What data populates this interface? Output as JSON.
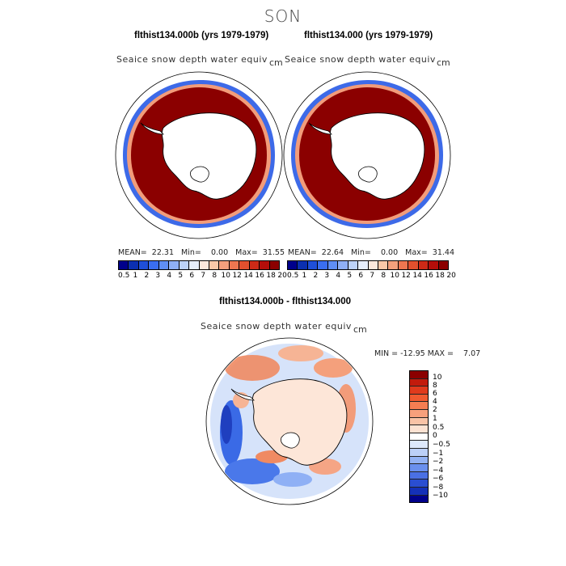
{
  "season": "SON",
  "panels": [
    {
      "title": "flthist134.000b (yrs 1979-1979)",
      "variable": "Seaice snow depth water equiv",
      "unit": "cm",
      "stats": "MEAN=  22.31   Min=    0.00   Max=  31.55"
    },
    {
      "title": "flthist134.000 (yrs 1979-1979)",
      "variable": "Seaice snow depth water equiv",
      "unit": "cm",
      "stats": "MEAN=  22.64   Min=    0.00   Max=  31.44"
    }
  ],
  "colorbar": {
    "labels": [
      "0.5",
      "1",
      "2",
      "3",
      "4",
      "5",
      "6",
      "7",
      "8",
      "10",
      "12",
      "14",
      "16",
      "18",
      "20"
    ],
    "colors": [
      "#00008b",
      "#0b2fb0",
      "#1f4fd8",
      "#3a6ef0",
      "#5f8ef5",
      "#8fb0f5",
      "#bcd2f7",
      "#e6eefb",
      "#fce8dc",
      "#f9c8a8",
      "#f4a07c",
      "#ee7650",
      "#e1502e",
      "#cd2a17",
      "#b30e0a",
      "#8b0000"
    ]
  },
  "diff": {
    "title": "flthist134.000b - flthist134.000",
    "variable": "Seaice snow depth water equiv",
    "unit": "cm",
    "minmax": "MIN = -12.95 MAX =    7.07",
    "colorbar_labels": [
      "10",
      "8",
      "6",
      "4",
      "2",
      "1",
      "0.5",
      "0",
      "−0.5",
      "−1",
      "−2",
      "−4",
      "−6",
      "−8",
      "−10"
    ],
    "colorbar_colors": [
      "#8b0000",
      "#c21b0c",
      "#e03a1c",
      "#f05a30",
      "#f57d52",
      "#f7a07c",
      "#f9c3a6",
      "#fce2d2",
      "#ffffff",
      "#dde8fb",
      "#bcd0f7",
      "#93b2f3",
      "#6a90ee",
      "#4a70e4",
      "#2a4ed2",
      "#1430b8",
      "#00008b"
    ]
  }
}
